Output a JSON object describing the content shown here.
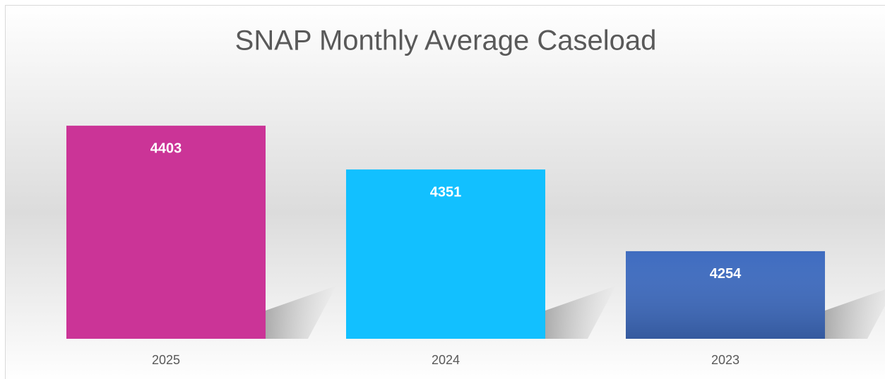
{
  "chart_data": {
    "type": "bar",
    "title": "SNAP Monthly Average Caseload",
    "categories": [
      "2025",
      "2024",
      "2023"
    ],
    "values": [
      4403,
      4351,
      4254
    ],
    "colors": [
      "#cb3497",
      "#12c0ff",
      "#3f6cc0"
    ],
    "ylim": [
      4150,
      4450
    ]
  }
}
